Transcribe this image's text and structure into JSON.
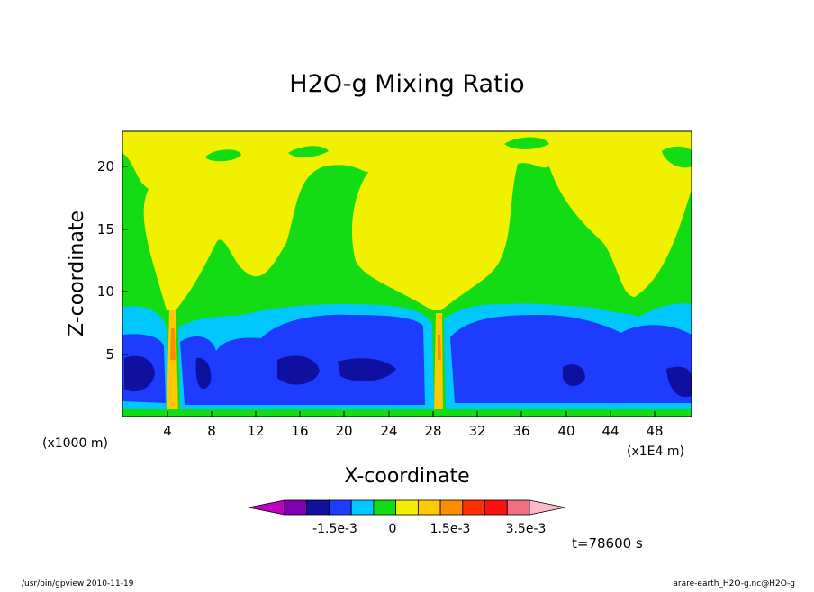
{
  "chart_data": {
    "type": "contour",
    "title": "H2O-g Mixing Ratio",
    "xlabel": "X-coordinate",
    "ylabel": "Z-coordinate",
    "x_unit": "(x1E4 m)",
    "y_unit": "(x1000 m)",
    "xlim": [
      0,
      51.5
    ],
    "ylim": [
      0,
      22.8
    ],
    "xticks": [
      "4",
      "8",
      "12",
      "16",
      "20",
      "24",
      "28",
      "32",
      "36",
      "40",
      "44",
      "48"
    ],
    "yticks": [
      "5",
      "10",
      "15",
      "20"
    ],
    "colorbar": {
      "levels": [
        "-1.5e-3",
        "0",
        "1.5e-3",
        "3.5e-3"
      ],
      "colors": [
        "#c000c0",
        "#8000b0",
        "#1010a0",
        "#1e3cff",
        "#00c8ff",
        "#14dc14",
        "#f0f000",
        "#ffc800",
        "#ff8c00",
        "#ff3000",
        "#ff1010",
        "#f07080",
        "#ffb8c8"
      ]
    },
    "time_label": "t=78600 s",
    "footer_left": "/usr/bin/gpview   2010-11-19",
    "footer_right": "arare-earth_H2O-g.nc@H2O-g"
  }
}
